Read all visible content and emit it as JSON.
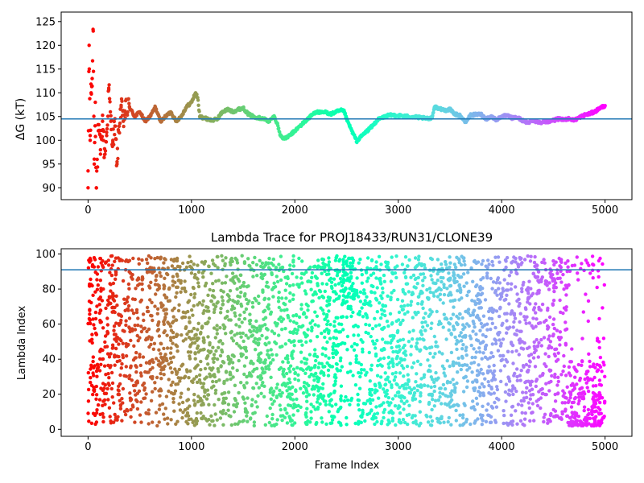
{
  "chart_data": [
    {
      "type": "scatter",
      "title": "",
      "xlabel": "",
      "ylabel": "ΔG (kT)",
      "xlim": [
        -260,
        5260
      ],
      "ylim": [
        87.5,
        127
      ],
      "xticks": [
        0,
        1000,
        2000,
        3000,
        4000,
        5000
      ],
      "yticks": [
        90,
        95,
        100,
        105,
        110,
        115,
        120,
        125
      ],
      "hline": 104.5,
      "hline_color": "#1f77b4",
      "grid": false,
      "colormap": "rainbow (red at frame 0 to violet at frame 5000)",
      "trace": [
        [
          0,
          90
        ],
        [
          10,
          120
        ],
        [
          20,
          100
        ],
        [
          30,
          110
        ],
        [
          40,
          113
        ],
        [
          50,
          123
        ],
        [
          60,
          95
        ],
        [
          70,
          108
        ],
        [
          80,
          90
        ],
        [
          100,
          102
        ],
        [
          120,
          98
        ],
        [
          140,
          104
        ],
        [
          160,
          97
        ],
        [
          180,
          101
        ],
        [
          200,
          111
        ],
        [
          220,
          104
        ],
        [
          240,
          100
        ],
        [
          260,
          103
        ],
        [
          280,
          95
        ],
        [
          300,
          103
        ],
        [
          320,
          107
        ],
        [
          340,
          104
        ],
        [
          360,
          106
        ],
        [
          400,
          107
        ],
        [
          450,
          105
        ],
        [
          500,
          106
        ],
        [
          550,
          104
        ],
        [
          600,
          105
        ],
        [
          650,
          107
        ],
        [
          700,
          104
        ],
        [
          750,
          105
        ],
        [
          800,
          106
        ],
        [
          850,
          104
        ],
        [
          900,
          105
        ],
        [
          950,
          107
        ],
        [
          1000,
          108
        ],
        [
          1040,
          110
        ],
        [
          1060,
          109
        ],
        [
          1080,
          105
        ],
        [
          1150,
          104.5
        ],
        [
          1200,
          104.2
        ],
        [
          1250,
          104.5
        ],
        [
          1300,
          106
        ],
        [
          1350,
          106.5
        ],
        [
          1400,
          106
        ],
        [
          1450,
          106.5
        ],
        [
          1500,
          106.8
        ],
        [
          1550,
          105.5
        ],
        [
          1600,
          105
        ],
        [
          1700,
          104.5
        ],
        [
          1750,
          104
        ],
        [
          1800,
          105
        ],
        [
          1830,
          103.5
        ],
        [
          1860,
          101
        ],
        [
          1900,
          100.3
        ],
        [
          1950,
          101
        ],
        [
          2000,
          102
        ],
        [
          2050,
          103
        ],
        [
          2100,
          104
        ],
        [
          2150,
          105
        ],
        [
          2200,
          106
        ],
        [
          2250,
          105.8
        ],
        [
          2300,
          105.9
        ],
        [
          2350,
          105.5
        ],
        [
          2400,
          106
        ],
        [
          2450,
          106.3
        ],
        [
          2480,
          106
        ],
        [
          2500,
          104.5
        ],
        [
          2550,
          102
        ],
        [
          2600,
          99.8
        ],
        [
          2650,
          101
        ],
        [
          2700,
          102
        ],
        [
          2750,
          103
        ],
        [
          2800,
          104.3
        ],
        [
          2850,
          104.8
        ],
        [
          2900,
          105.2
        ],
        [
          2950,
          105.3
        ],
        [
          3000,
          105.2
        ],
        [
          3100,
          105
        ],
        [
          3200,
          104.8
        ],
        [
          3300,
          104.5
        ],
        [
          3330,
          105
        ],
        [
          3350,
          107
        ],
        [
          3400,
          106.7
        ],
        [
          3450,
          106.3
        ],
        [
          3500,
          106.5
        ],
        [
          3550,
          105.5
        ],
        [
          3600,
          105.2
        ],
        [
          3650,
          103.8
        ],
        [
          3700,
          105.3
        ],
        [
          3800,
          105.5
        ],
        [
          3850,
          104.5
        ],
        [
          3900,
          105
        ],
        [
          3950,
          104.3
        ],
        [
          4000,
          105
        ],
        [
          4050,
          105.2
        ],
        [
          4100,
          104.7
        ],
        [
          4150,
          104.8
        ],
        [
          4200,
          104.2
        ],
        [
          4250,
          103.7
        ],
        [
          4300,
          104.2
        ],
        [
          4350,
          103.9
        ],
        [
          4400,
          103.8
        ],
        [
          4450,
          104
        ],
        [
          4500,
          104.2
        ],
        [
          4550,
          104.5
        ],
        [
          4600,
          104.3
        ],
        [
          4650,
          104.6
        ],
        [
          4700,
          104.2
        ],
        [
          4750,
          104.8
        ],
        [
          4800,
          105.3
        ],
        [
          4850,
          105.6
        ],
        [
          4900,
          106
        ],
        [
          4950,
          106.8
        ],
        [
          5000,
          107.3
        ]
      ]
    },
    {
      "type": "scatter",
      "title": "Lambda Trace for PROJ18433/RUN31/CLONE39",
      "xlabel": "Frame Index",
      "ylabel": "Lambda Index",
      "xlim": [
        -260,
        5260
      ],
      "ylim": [
        -4,
        103
      ],
      "xticks": [
        0,
        1000,
        2000,
        3000,
        4000,
        5000
      ],
      "yticks": [
        0,
        20,
        40,
        60,
        80,
        100
      ],
      "hline": 91,
      "hline_color": "#1f77b4",
      "grid": false,
      "colormap": "rainbow (red at frame 0 to violet at frame 5000)",
      "x_range": [
        0,
        5000
      ],
      "lambda_range": [
        2,
        99
      ],
      "n_points": 3600
    }
  ]
}
